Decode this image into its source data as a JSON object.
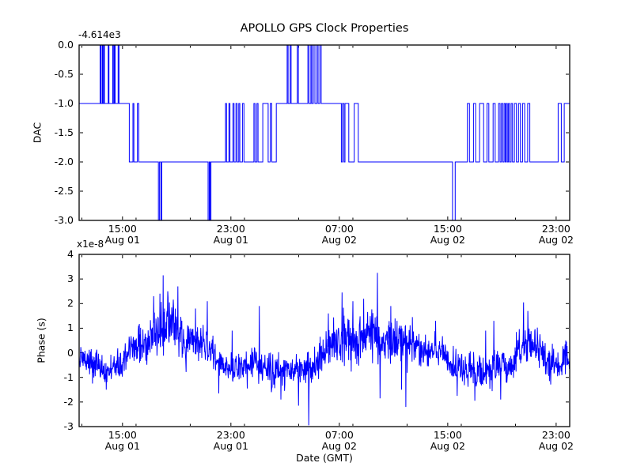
{
  "figure": {
    "background": "#ffffff",
    "line_color": "#0000ff",
    "axis_color": "#000000"
  },
  "chart_data": [
    {
      "type": "step",
      "series_name": "DAC",
      "title": "APOLLO GPS Clock Properties",
      "ylabel": "DAC",
      "y_offset_text": "-4.614e3",
      "ylim": [
        -3.0,
        0.0
      ],
      "xlim_hours": [
        0,
        36.2
      ],
      "grid": false,
      "legend": "none",
      "yticks": [
        {
          "v": 0.0,
          "label": "0.0"
        },
        {
          "v": -0.5,
          "label": "-0.5"
        },
        {
          "v": -1.0,
          "label": "-1.0"
        },
        {
          "v": -1.5,
          "label": "-1.5"
        },
        {
          "v": -2.0,
          "label": "-2.0"
        },
        {
          "v": -2.5,
          "label": "-2.5"
        },
        {
          "v": -3.0,
          "label": "-3.0"
        }
      ],
      "xticks": [
        {
          "t": 3.2,
          "time": "15:00",
          "date": "Aug 01"
        },
        {
          "t": 11.2,
          "time": "23:00",
          "date": "Aug 01"
        },
        {
          "t": 19.2,
          "time": "07:00",
          "date": "Aug 02"
        },
        {
          "t": 27.2,
          "time": "15:00",
          "date": "Aug 02"
        },
        {
          "t": 35.2,
          "time": "23:00",
          "date": "Aug 02"
        }
      ],
      "minor_xticks_hours": [
        0.2,
        4.2,
        8.2,
        12.2,
        16.2,
        20.2,
        24.2,
        28.2,
        32.2
      ],
      "steps": [
        [
          0,
          -1
        ],
        [
          1.55,
          0
        ],
        [
          1.6,
          -1
        ],
        [
          1.7,
          0
        ],
        [
          1.75,
          -1
        ],
        [
          1.82,
          0
        ],
        [
          1.87,
          -1
        ],
        [
          2.15,
          0
        ],
        [
          2.2,
          -1
        ],
        [
          2.48,
          0
        ],
        [
          2.53,
          -1
        ],
        [
          2.6,
          0
        ],
        [
          2.66,
          -1
        ],
        [
          2.88,
          0
        ],
        [
          2.94,
          -1
        ],
        [
          3.7,
          -2
        ],
        [
          3.97,
          -1
        ],
        [
          4.04,
          -2
        ],
        [
          4.3,
          -1
        ],
        [
          4.4,
          -2
        ],
        [
          5.85,
          -3
        ],
        [
          5.93,
          -2
        ],
        [
          6.03,
          -3
        ],
        [
          6.1,
          -2
        ],
        [
          9.52,
          -3
        ],
        [
          9.6,
          -2
        ],
        [
          9.66,
          -3
        ],
        [
          9.73,
          -2
        ],
        [
          10.8,
          -1
        ],
        [
          10.88,
          -2
        ],
        [
          11.05,
          -1
        ],
        [
          11.13,
          -2
        ],
        [
          11.35,
          -1
        ],
        [
          11.43,
          -2
        ],
        [
          11.57,
          -1
        ],
        [
          11.66,
          -2
        ],
        [
          11.78,
          -1
        ],
        [
          11.86,
          -2
        ],
        [
          12.05,
          -1
        ],
        [
          12.16,
          -2
        ],
        [
          12.9,
          -1
        ],
        [
          12.98,
          -2
        ],
        [
          13.12,
          -1
        ],
        [
          13.2,
          -2
        ],
        [
          13.55,
          -1
        ],
        [
          13.95,
          -2
        ],
        [
          14.1,
          -1
        ],
        [
          14.22,
          -2
        ],
        [
          14.55,
          -1
        ],
        [
          15.35,
          0
        ],
        [
          15.42,
          -1
        ],
        [
          15.57,
          0
        ],
        [
          15.64,
          -1
        ],
        [
          16.1,
          0
        ],
        [
          16.18,
          -1
        ],
        [
          16.88,
          0
        ],
        [
          16.96,
          -1
        ],
        [
          17.1,
          0
        ],
        [
          17.17,
          -1
        ],
        [
          17.28,
          0
        ],
        [
          17.4,
          -1
        ],
        [
          17.55,
          0
        ],
        [
          17.63,
          -1
        ],
        [
          17.76,
          0
        ],
        [
          17.86,
          -1
        ],
        [
          19.35,
          -2
        ],
        [
          19.43,
          -1
        ],
        [
          19.54,
          -2
        ],
        [
          19.62,
          -1
        ],
        [
          19.9,
          -2
        ],
        [
          20.3,
          -1
        ],
        [
          20.6,
          -2
        ],
        [
          27.55,
          -3
        ],
        [
          27.75,
          -2
        ],
        [
          28.65,
          -1
        ],
        [
          28.8,
          -2
        ],
        [
          29.1,
          -1
        ],
        [
          29.26,
          -2
        ],
        [
          29.55,
          -1
        ],
        [
          29.85,
          -2
        ],
        [
          30.1,
          -1
        ],
        [
          30.23,
          -2
        ],
        [
          30.55,
          -1
        ],
        [
          30.7,
          -2
        ],
        [
          30.95,
          -1
        ],
        [
          31.06,
          -2
        ],
        [
          31.16,
          -1
        ],
        [
          31.26,
          -2
        ],
        [
          31.36,
          -1
        ],
        [
          31.44,
          -2
        ],
        [
          31.52,
          -1
        ],
        [
          31.6,
          -2
        ],
        [
          31.68,
          -1
        ],
        [
          31.76,
          -2
        ],
        [
          31.88,
          -1
        ],
        [
          31.98,
          -2
        ],
        [
          32.12,
          -1
        ],
        [
          32.27,
          -2
        ],
        [
          32.42,
          -1
        ],
        [
          32.56,
          -2
        ],
        [
          32.72,
          -1
        ],
        [
          32.88,
          -2
        ],
        [
          33.1,
          -1
        ],
        [
          33.26,
          -2
        ],
        [
          35.35,
          -1
        ],
        [
          35.58,
          -2
        ],
        [
          35.8,
          -1
        ]
      ]
    },
    {
      "type": "line",
      "series_name": "Phase",
      "ylabel": "Phase (s)",
      "y_multiplier_text": "x1e-8",
      "xlabel": "Date (GMT)",
      "ylim": [
        -3,
        4
      ],
      "xlim_hours": [
        0,
        36.2
      ],
      "grid": false,
      "legend": "none",
      "yticks": [
        {
          "v": 4,
          "label": "4"
        },
        {
          "v": 3,
          "label": "3"
        },
        {
          "v": 2,
          "label": "2"
        },
        {
          "v": 1,
          "label": "1"
        },
        {
          "v": 0,
          "label": "0"
        },
        {
          "v": -1,
          "label": "-1"
        },
        {
          "v": -2,
          "label": "-2"
        },
        {
          "v": -3,
          "label": "-3"
        }
      ],
      "xticks": [
        {
          "t": 3.2,
          "time": "15:00",
          "date": "Aug 01"
        },
        {
          "t": 11.2,
          "time": "23:00",
          "date": "Aug 01"
        },
        {
          "t": 19.2,
          "time": "07:00",
          "date": "Aug 02"
        },
        {
          "t": 27.2,
          "time": "15:00",
          "date": "Aug 02"
        },
        {
          "t": 35.2,
          "time": "23:00",
          "date": "Aug 02"
        }
      ],
      "minor_xticks_hours": [
        0.2,
        4.2,
        8.2,
        12.2,
        16.2,
        20.2,
        24.2,
        28.2,
        32.2
      ],
      "mean_curve": [
        [
          0,
          -0.25
        ],
        [
          0.6,
          -0.4
        ],
        [
          1.5,
          -0.5
        ],
        [
          2.2,
          -0.45
        ],
        [
          3.0,
          -0.4
        ],
        [
          3.6,
          -0.15
        ],
        [
          4.4,
          0.4
        ],
        [
          5.2,
          0.7
        ],
        [
          6.0,
          0.85
        ],
        [
          6.8,
          0.9
        ],
        [
          7.4,
          0.6
        ],
        [
          8.2,
          0.35
        ],
        [
          9.0,
          0.4
        ],
        [
          9.8,
          0.15
        ],
        [
          10.4,
          -0.5
        ],
        [
          11.2,
          -0.6
        ],
        [
          12.0,
          -0.5
        ],
        [
          12.8,
          -0.55
        ],
        [
          13.6,
          -0.6
        ],
        [
          14.4,
          -0.7
        ],
        [
          15.2,
          -0.8
        ],
        [
          16.0,
          -0.7
        ],
        [
          16.8,
          -0.6
        ],
        [
          17.4,
          -0.35
        ],
        [
          18.0,
          0.0
        ],
        [
          18.7,
          0.35
        ],
        [
          19.5,
          0.45
        ],
        [
          20.3,
          0.5
        ],
        [
          21.2,
          0.55
        ],
        [
          22.0,
          0.6
        ],
        [
          22.8,
          0.65
        ],
        [
          23.6,
          0.5
        ],
        [
          24.4,
          0.35
        ],
        [
          25.3,
          0.0
        ],
        [
          26.0,
          0.2
        ],
        [
          26.7,
          0.0
        ],
        [
          27.3,
          -0.5
        ],
        [
          28.0,
          -0.75
        ],
        [
          28.8,
          -0.55
        ],
        [
          29.6,
          -0.7
        ],
        [
          30.4,
          -0.65
        ],
        [
          31.2,
          -0.55
        ],
        [
          31.9,
          -0.45
        ],
        [
          32.5,
          0.3
        ],
        [
          32.9,
          0.45
        ],
        [
          33.4,
          0.2
        ],
        [
          34.0,
          -0.15
        ],
        [
          34.6,
          -0.35
        ],
        [
          35.1,
          -0.55
        ],
        [
          35.6,
          -0.45
        ],
        [
          35.9,
          -0.15
        ],
        [
          36.2,
          -0.3
        ]
      ],
      "noise_band": [
        [
          0,
          0.3
        ],
        [
          3.6,
          0.3
        ],
        [
          4.4,
          0.48
        ],
        [
          7.2,
          0.5
        ],
        [
          8.0,
          0.4
        ],
        [
          9.8,
          0.32
        ],
        [
          17.2,
          0.32
        ],
        [
          18.4,
          0.5
        ],
        [
          23.8,
          0.52
        ],
        [
          25.0,
          0.35
        ],
        [
          27.0,
          0.32
        ],
        [
          31.8,
          0.36
        ],
        [
          33.0,
          0.4
        ],
        [
          34.0,
          0.32
        ],
        [
          36.2,
          0.3
        ]
      ],
      "spikes": [
        [
          1.0,
          -1.25
        ],
        [
          2.0,
          -1.5
        ],
        [
          5.5,
          2.3
        ],
        [
          5.95,
          2.4
        ],
        [
          6.2,
          3.15
        ],
        [
          6.55,
          2.5
        ],
        [
          7.3,
          2.7
        ],
        [
          8.6,
          1.8
        ],
        [
          9.45,
          2.1
        ],
        [
          10.3,
          -1.65
        ],
        [
          11.3,
          0.9
        ],
        [
          12.4,
          -1.45
        ],
        [
          13.3,
          1.9
        ],
        [
          14.2,
          -1.6
        ],
        [
          14.9,
          -1.9
        ],
        [
          16.2,
          -2.15
        ],
        [
          16.95,
          -2.95
        ],
        [
          18.4,
          1.6
        ],
        [
          19.4,
          2.45
        ],
        [
          20.2,
          2.1
        ],
        [
          21.0,
          2.2
        ],
        [
          22.0,
          3.25
        ],
        [
          22.2,
          -1.85
        ],
        [
          23.0,
          1.9
        ],
        [
          23.8,
          -1.5
        ],
        [
          24.1,
          -2.2
        ],
        [
          24.6,
          1.45
        ],
        [
          26.3,
          1.3
        ],
        [
          27.9,
          -1.75
        ],
        [
          29.2,
          -1.95
        ],
        [
          30.0,
          0.9
        ],
        [
          30.6,
          1.3
        ],
        [
          31.1,
          -1.9
        ],
        [
          32.8,
          2.05
        ],
        [
          33.1,
          1.7
        ],
        [
          34.7,
          -1.15
        ],
        [
          35.3,
          -0.95
        ],
        [
          35.9,
          0.5
        ]
      ]
    }
  ]
}
